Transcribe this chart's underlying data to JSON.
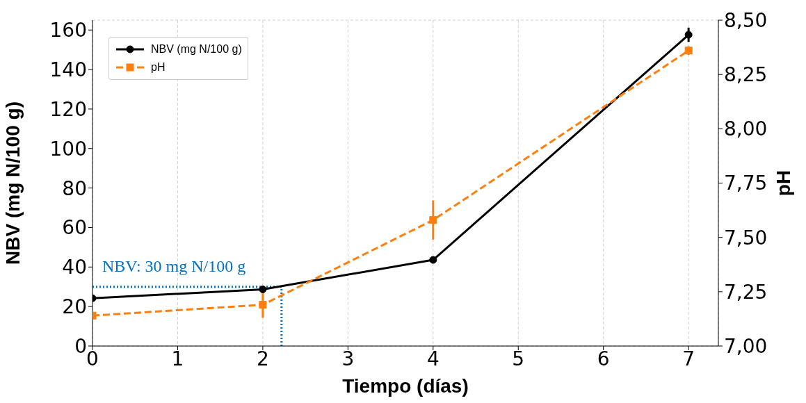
{
  "chart_data": {
    "type": "line",
    "xlabel": "Tiempo (días)",
    "ylabel": "NBV (mg N/100 g)",
    "y2label": "pH",
    "x": [
      0,
      2,
      4,
      7
    ],
    "series": [
      {
        "name": "NBV (mg N/100 g)",
        "color": "#000000",
        "values": [
          24.2,
          28.7,
          43.6,
          157.6
        ],
        "errors": [
          null,
          null,
          null,
          3.6
        ],
        "marker": "circle",
        "line_style": "solid"
      },
      {
        "name": "pH",
        "color": "#ff7f0e",
        "values": [
          7.14,
          7.19,
          7.58,
          8.36
        ],
        "errors": [
          null,
          0.06,
          0.09,
          0.02
        ],
        "marker": "square",
        "line_style": "dashed",
        "axis": "y2"
      }
    ],
    "xlim": [
      0,
      7.35
    ],
    "xticks": [
      0,
      1,
      2,
      3,
      4,
      5,
      6,
      7
    ],
    "ylim": [
      0,
      165
    ],
    "yticks": [
      0,
      20,
      40,
      60,
      80,
      100,
      120,
      140,
      160
    ],
    "y2lim": [
      7.0,
      8.5
    ],
    "y2ticks": [
      {
        "value": 7.0,
        "label": "7,00"
      },
      {
        "value": 7.25,
        "label": "7,25"
      },
      {
        "value": 7.5,
        "label": "7,50"
      },
      {
        "value": 7.75,
        "label": "7,75"
      },
      {
        "value": 8.0,
        "label": "8,00"
      },
      {
        "value": 8.25,
        "label": "8,25"
      },
      {
        "value": 8.5,
        "label": "8,50"
      }
    ],
    "ref_lines": [
      {
        "axis": "y",
        "value": 30,
        "label": "NBV: 30 mg N/100 g",
        "color": "#0070c0",
        "line_style": "dotted"
      },
      {
        "axis": "x",
        "value": 2.22,
        "color": "#0070c0",
        "line_style": "dotted"
      }
    ],
    "grid": true,
    "legend": "top left"
  }
}
